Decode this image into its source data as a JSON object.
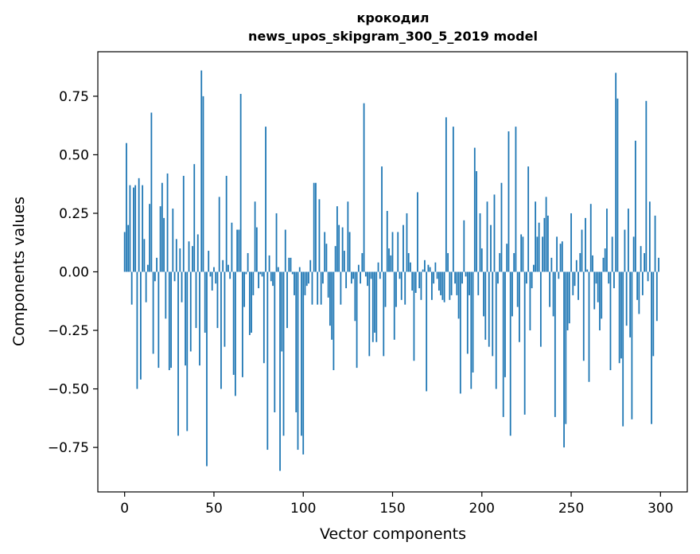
{
  "chart_data": {
    "type": "bar",
    "title": "крокодил",
    "subtitle": "news_upos_skipgram_300_5_2019 model",
    "xlabel": "Vector components",
    "ylabel": "Components values",
    "xlim": [
      -15,
      315
    ],
    "ylim": [
      -0.94,
      0.94
    ],
    "xticks": [
      0,
      50,
      100,
      150,
      200,
      250,
      300
    ],
    "xtick_labels": [
      "0",
      "50",
      "100",
      "150",
      "200",
      "250",
      "300"
    ],
    "yticks": [
      -0.75,
      -0.5,
      -0.25,
      0.0,
      0.25,
      0.5,
      0.75
    ],
    "ytick_labels": [
      "−0.75",
      "−0.50",
      "−0.25",
      "0.00",
      "0.25",
      "0.50",
      "0.75"
    ],
    "bar_color": "#1f77b4",
    "grid": false,
    "legend": "none",
    "values": [
      0.17,
      0.55,
      0.2,
      0.37,
      -0.14,
      0.36,
      0.37,
      -0.5,
      0.4,
      -0.46,
      0.37,
      0.14,
      -0.13,
      0.03,
      0.29,
      0.68,
      -0.35,
      -0.04,
      0.06,
      -0.41,
      0.28,
      0.38,
      0.23,
      -0.2,
      0.42,
      -0.42,
      -0.41,
      0.27,
      -0.04,
      0.14,
      -0.7,
      0.1,
      -0.13,
      0.41,
      -0.4,
      -0.68,
      0.13,
      -0.34,
      0.11,
      0.46,
      -0.24,
      0.16,
      -0.4,
      0.86,
      0.75,
      -0.26,
      -0.83,
      0.09,
      -0.02,
      -0.08,
      0.02,
      -0.05,
      -0.24,
      0.32,
      -0.5,
      0.05,
      -0.32,
      0.41,
      0.03,
      -0.03,
      0.21,
      -0.44,
      -0.53,
      0.18,
      0.18,
      0.76,
      -0.45,
      -0.15,
      -0.01,
      0.08,
      -0.27,
      -0.26,
      -0.1,
      0.3,
      0.19,
      -0.07,
      -0.01,
      -0.02,
      -0.39,
      0.62,
      -0.76,
      0.07,
      -0.04,
      -0.06,
      -0.6,
      0.25,
      0.02,
      -0.85,
      -0.34,
      -0.7,
      0.18,
      -0.24,
      0.06,
      0.06,
      -0.01,
      -0.1,
      -0.6,
      -0.76,
      0.02,
      -0.7,
      -0.78,
      -0.1,
      -0.06,
      -0.05,
      0.05,
      -0.14,
      0.38,
      0.38,
      -0.14,
      0.31,
      -0.14,
      -0.05,
      0.17,
      0.12,
      -0.11,
      -0.23,
      -0.29,
      -0.42,
      0.11,
      0.28,
      0.2,
      -0.14,
      0.19,
      0.09,
      -0.07,
      0.3,
      0.17,
      -0.05,
      -0.03,
      -0.21,
      -0.41,
      0.03,
      -0.05,
      0.08,
      0.72,
      -0.02,
      -0.06,
      -0.36,
      -0.03,
      -0.3,
      -0.26,
      -0.3,
      0.04,
      -0.03,
      0.45,
      -0.36,
      -0.15,
      0.26,
      0.1,
      0.07,
      0.17,
      -0.29,
      -0.15,
      0.17,
      -0.03,
      -0.12,
      0.2,
      -0.14,
      0.25,
      0.08,
      0.04,
      -0.08,
      -0.38,
      -0.09,
      0.34,
      -0.07,
      -0.12,
      0.01,
      0.05,
      -0.51,
      0.03,
      0.02,
      -0.12,
      -0.05,
      0.04,
      -0.03,
      -0.08,
      -0.1,
      -0.12,
      -0.13,
      0.66,
      0.08,
      -0.12,
      -0.1,
      0.62,
      -0.05,
      -0.1,
      -0.2,
      -0.52,
      -0.05,
      0.22,
      -0.02,
      -0.35,
      -0.1,
      -0.5,
      -0.43,
      0.53,
      0.43,
      -0.1,
      0.25,
      0.1,
      -0.19,
      -0.29,
      0.3,
      -0.32,
      0.2,
      -0.36,
      0.33,
      -0.5,
      -0.05,
      0.08,
      0.38,
      -0.62,
      -0.45,
      0.12,
      0.6,
      -0.7,
      -0.19,
      0.08,
      0.62,
      -0.15,
      -0.3,
      0.16,
      0.15,
      -0.61,
      -0.05,
      0.45,
      -0.25,
      -0.07,
      0.03,
      0.3,
      0.15,
      0.21,
      -0.32,
      0.15,
      0.23,
      0.32,
      0.24,
      -0.15,
      0.06,
      -0.19,
      -0.62,
      0.15,
      -0.03,
      0.12,
      0.13,
      -0.75,
      -0.65,
      -0.25,
      -0.22,
      0.25,
      -0.1,
      -0.06,
      0.05,
      -0.12,
      0.08,
      0.18,
      -0.38,
      0.23,
      0.01,
      -0.47,
      0.29,
      0.07,
      -0.16,
      -0.05,
      -0.13,
      -0.25,
      -0.2,
      0.06,
      0.1,
      0.27,
      -0.05,
      -0.42,
      0.15,
      -0.07,
      0.85,
      0.74,
      -0.39,
      -0.37,
      -0.66,
      0.18,
      -0.23,
      0.27,
      -0.28,
      -0.63,
      0.15,
      0.56,
      -0.12,
      -0.18,
      0.11,
      -0.1,
      0.08,
      0.73,
      -0.04,
      0.3,
      -0.65,
      -0.36,
      0.24,
      -0.21,
      0.06
    ]
  }
}
